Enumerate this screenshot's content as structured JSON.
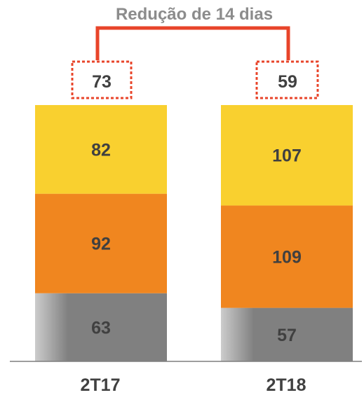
{
  "colors": {
    "top": "#F9D02F",
    "middle": "#F0861F",
    "bottom": "#808080",
    "accent": "#E8442A",
    "annotation_text": "#8C8C8C",
    "label_text": "#404040",
    "axis": "#7F7F7F"
  },
  "chart_data": {
    "type": "bar",
    "stacked": true,
    "categories": [
      "2T17",
      "2T18"
    ],
    "series": [
      {
        "values": [
          63,
          57
        ]
      },
      {
        "values": [
          92,
          109
        ]
      },
      {
        "values": [
          82,
          107
        ]
      }
    ],
    "annotation": {
      "text": "Redução de 14 dias",
      "boxed_values": [
        "73",
        "59"
      ]
    },
    "grid": false,
    "legend": "none"
  }
}
